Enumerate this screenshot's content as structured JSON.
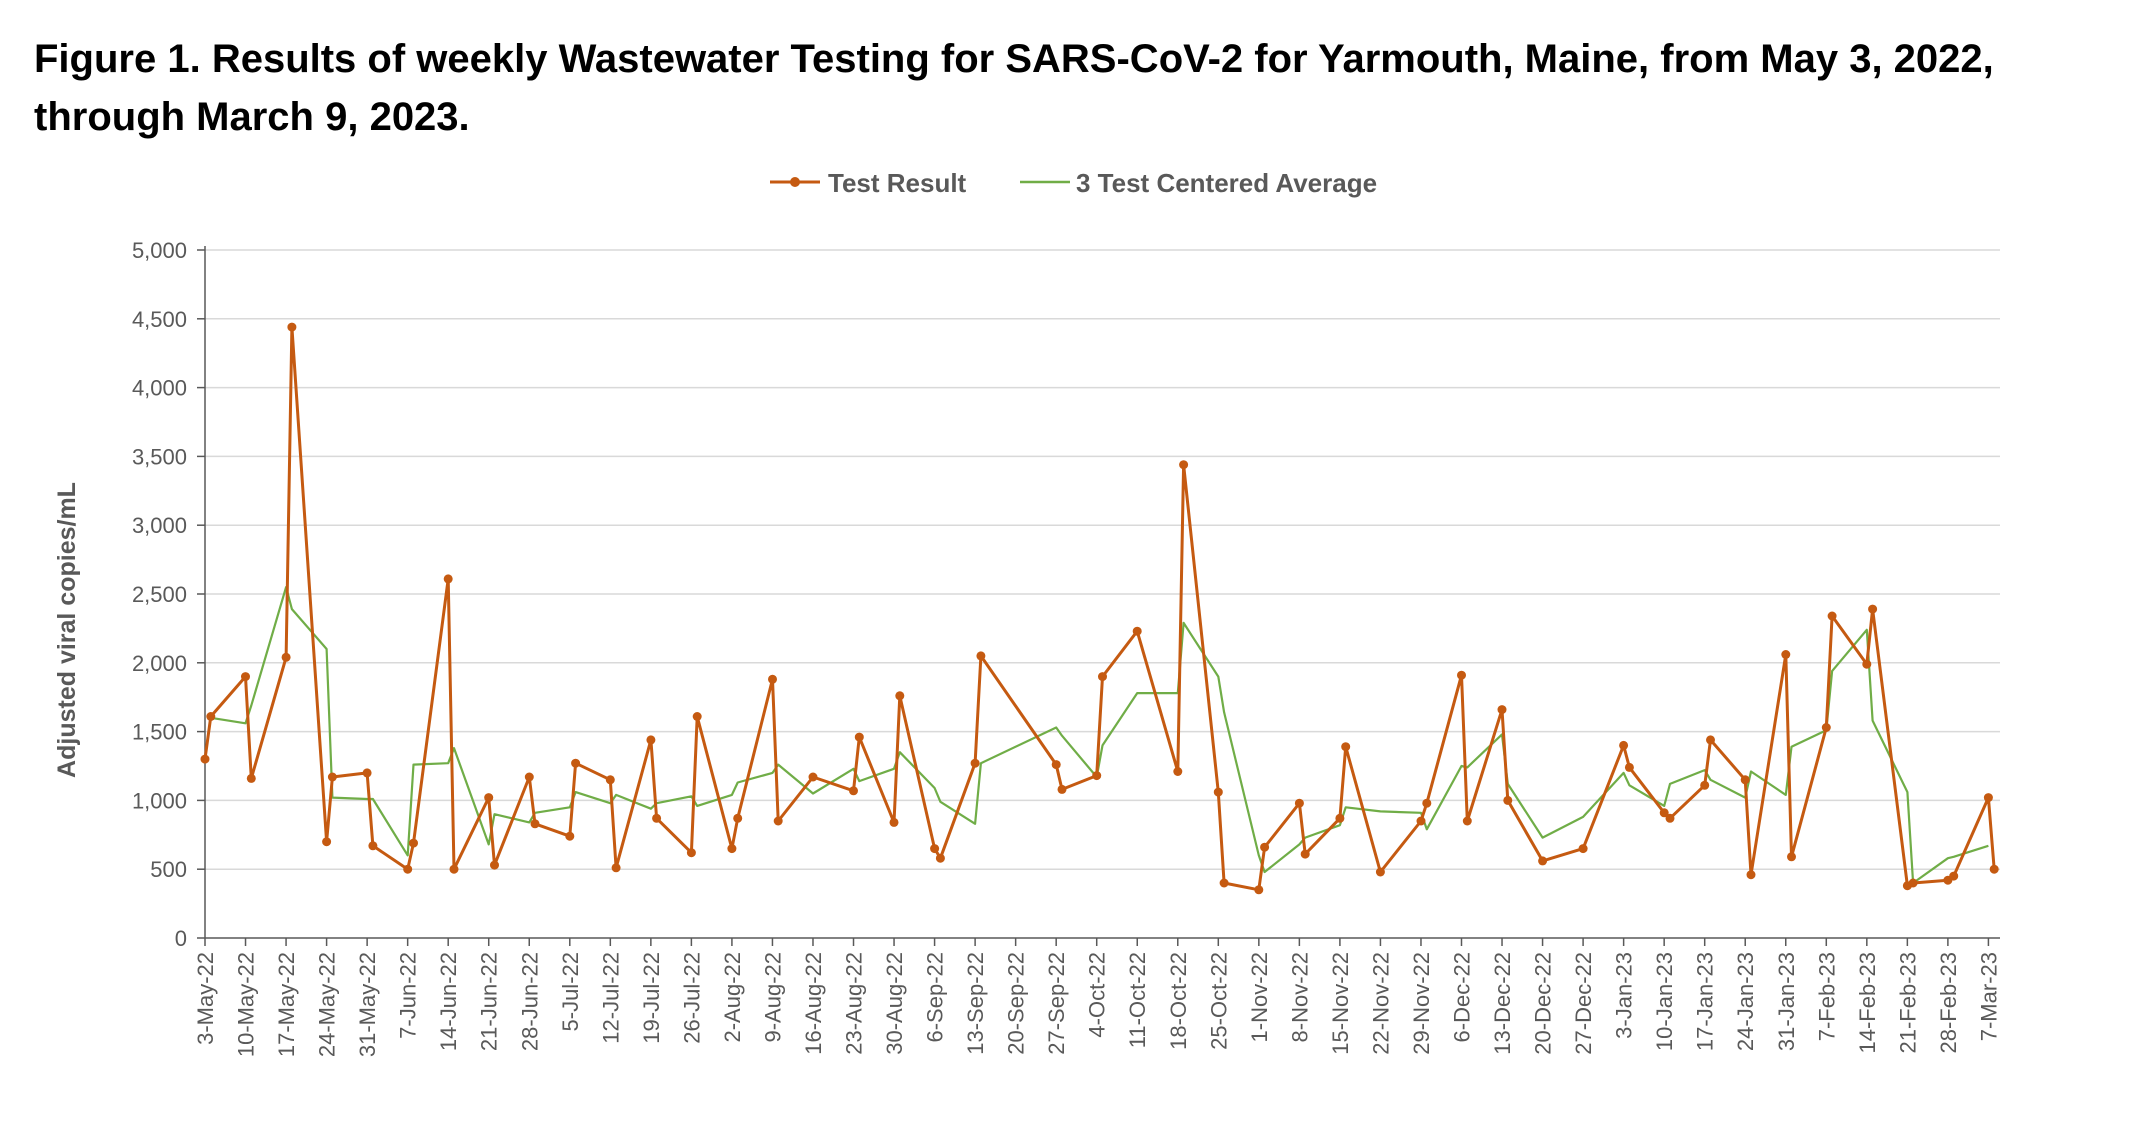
{
  "figure_title": "Figure 1. Results of weekly Wastewater Testing for SARS-CoV-2 for Yarmouth, Maine, from May 3, 2022, through March 9, 2023.",
  "colors": {
    "test_result": "#C55A11",
    "average": "#70AD47",
    "grid": "#D9D9D9",
    "axis": "#595959",
    "text": "#595959"
  },
  "chart_data": {
    "type": "line",
    "title": "",
    "xlabel": "",
    "ylabel": "Adjusted viral copies/mL",
    "ylim": [
      0,
      5000
    ],
    "yticks": [
      0,
      500,
      1000,
      1500,
      2000,
      2500,
      3000,
      3500,
      4000,
      4500,
      5000
    ],
    "ytick_labels": [
      "0",
      "500",
      "1,000",
      "1,500",
      "2,000",
      "2,500",
      "3,000",
      "3,500",
      "4,000",
      "4,500",
      "5,000"
    ],
    "xlim": [
      "2022-05-03",
      "2023-03-09"
    ],
    "xticks": [
      "2022-05-03",
      "2022-05-10",
      "2022-05-17",
      "2022-05-24",
      "2022-05-31",
      "2022-06-07",
      "2022-06-14",
      "2022-06-21",
      "2022-06-28",
      "2022-07-05",
      "2022-07-12",
      "2022-07-19",
      "2022-07-26",
      "2022-08-02",
      "2022-08-09",
      "2022-08-16",
      "2022-08-23",
      "2022-08-30",
      "2022-09-06",
      "2022-09-13",
      "2022-09-20",
      "2022-09-27",
      "2022-10-04",
      "2022-10-11",
      "2022-10-18",
      "2022-10-25",
      "2022-11-01",
      "2022-11-08",
      "2022-11-15",
      "2022-11-22",
      "2022-11-29",
      "2022-12-06",
      "2022-12-13",
      "2022-12-20",
      "2022-12-27",
      "2023-01-03",
      "2023-01-10",
      "2023-01-17",
      "2023-01-24",
      "2023-01-31",
      "2023-02-07",
      "2023-02-14",
      "2023-02-21",
      "2023-02-28",
      "2023-03-07"
    ],
    "xtick_labels": [
      "3-May-22",
      "10-May-22",
      "17-May-22",
      "24-May-22",
      "31-May-22",
      "7-Jun-22",
      "14-Jun-22",
      "21-Jun-22",
      "28-Jun-22",
      "5-Jul-22",
      "12-Jul-22",
      "19-Jul-22",
      "26-Jul-22",
      "2-Aug-22",
      "9-Aug-22",
      "16-Aug-22",
      "23-Aug-22",
      "30-Aug-22",
      "6-Sep-22",
      "13-Sep-22",
      "20-Sep-22",
      "27-Sep-22",
      "4-Oct-22",
      "11-Oct-22",
      "18-Oct-22",
      "25-Oct-22",
      "1-Nov-22",
      "8-Nov-22",
      "15-Nov-22",
      "22-Nov-22",
      "29-Nov-22",
      "6-Dec-22",
      "13-Dec-22",
      "20-Dec-22",
      "27-Dec-22",
      "3-Jan-23",
      "10-Jan-23",
      "17-Jan-23",
      "24-Jan-23",
      "31-Jan-23",
      "7-Feb-23",
      "14-Feb-23",
      "21-Feb-23",
      "28-Feb-23",
      "7-Mar-23"
    ],
    "grid": "horizontal",
    "legend_position": "top-center",
    "series": [
      {
        "name": "Test Result",
        "style": "line-with-markers",
        "x": [
          "2022-05-03",
          "2022-05-04",
          "2022-05-10",
          "2022-05-11",
          "2022-05-17",
          "2022-05-18",
          "2022-05-24",
          "2022-05-25",
          "2022-05-31",
          "2022-06-01",
          "2022-06-07",
          "2022-06-08",
          "2022-06-14",
          "2022-06-15",
          "2022-06-21",
          "2022-06-22",
          "2022-06-28",
          "2022-06-29",
          "2022-07-05",
          "2022-07-06",
          "2022-07-12",
          "2022-07-13",
          "2022-07-19",
          "2022-07-20",
          "2022-07-26",
          "2022-07-27",
          "2022-08-02",
          "2022-08-03",
          "2022-08-09",
          "2022-08-10",
          "2022-08-16",
          "2022-08-23",
          "2022-08-24",
          "2022-08-30",
          "2022-08-31",
          "2022-09-06",
          "2022-09-07",
          "2022-09-13",
          "2022-09-14",
          "2022-09-27",
          "2022-09-28",
          "2022-10-04",
          "2022-10-05",
          "2022-10-11",
          "2022-10-18",
          "2022-10-19",
          "2022-10-25",
          "2022-10-26",
          "2022-11-01",
          "2022-11-02",
          "2022-11-08",
          "2022-11-09",
          "2022-11-15",
          "2022-11-16",
          "2022-11-22",
          "2022-11-29",
          "2022-11-30",
          "2022-12-06",
          "2022-12-07",
          "2022-12-13",
          "2022-12-14",
          "2022-12-20",
          "2022-12-27",
          "2023-01-03",
          "2023-01-04",
          "2023-01-10",
          "2023-01-11",
          "2023-01-17",
          "2023-01-18",
          "2023-01-24",
          "2023-01-25",
          "2023-01-31",
          "2023-02-01",
          "2023-02-07",
          "2023-02-08",
          "2023-02-14",
          "2023-02-15",
          "2023-02-21",
          "2023-02-22",
          "2023-02-28",
          "2023-03-01",
          "2023-03-07",
          "2023-03-08"
        ],
        "values": [
          1300,
          1610,
          1900,
          1160,
          2040,
          4440,
          700,
          1170,
          1200,
          670,
          500,
          690,
          2610,
          500,
          1020,
          530,
          1170,
          830,
          740,
          1270,
          1150,
          510,
          1440,
          870,
          620,
          1610,
          650,
          870,
          1880,
          850,
          1170,
          1070,
          1460,
          840,
          1760,
          650,
          580,
          1270,
          2050,
          1260,
          1080,
          1180,
          1900,
          2230,
          1210,
          3440,
          1060,
          400,
          350,
          660,
          980,
          610,
          870,
          1390,
          480,
          850,
          980,
          1910,
          850,
          1660,
          1000,
          560,
          650,
          1400,
          1240,
          910,
          870,
          1110,
          1440,
          1150,
          460,
          2060,
          590,
          1530,
          2340,
          1990,
          2390,
          380,
          400,
          420,
          450,
          1020,
          500
        ]
      },
      {
        "name": "3 Test Centered Average",
        "style": "line",
        "x": [
          "2022-05-04",
          "2022-05-10",
          "2022-05-11",
          "2022-05-17",
          "2022-05-18",
          "2022-05-24",
          "2022-05-25",
          "2022-05-31",
          "2022-06-01",
          "2022-06-07",
          "2022-06-08",
          "2022-06-14",
          "2022-06-15",
          "2022-06-21",
          "2022-06-22",
          "2022-06-28",
          "2022-06-29",
          "2022-07-05",
          "2022-07-06",
          "2022-07-12",
          "2022-07-13",
          "2022-07-19",
          "2022-07-20",
          "2022-07-26",
          "2022-07-27",
          "2022-08-02",
          "2022-08-03",
          "2022-08-09",
          "2022-08-10",
          "2022-08-16",
          "2022-08-23",
          "2022-08-24",
          "2022-08-30",
          "2022-08-31",
          "2022-09-06",
          "2022-09-07",
          "2022-09-13",
          "2022-09-14",
          "2022-09-27",
          "2022-09-28",
          "2022-10-04",
          "2022-10-05",
          "2022-10-11",
          "2022-10-18",
          "2022-10-19",
          "2022-10-25",
          "2022-10-26",
          "2022-11-01",
          "2022-11-02",
          "2022-11-08",
          "2022-11-09",
          "2022-11-15",
          "2022-11-16",
          "2022-11-22",
          "2022-11-29",
          "2022-11-30",
          "2022-12-06",
          "2022-12-07",
          "2022-12-13",
          "2022-12-14",
          "2022-12-20",
          "2022-12-27",
          "2023-01-03",
          "2023-01-04",
          "2023-01-10",
          "2023-01-11",
          "2023-01-17",
          "2023-01-18",
          "2023-01-24",
          "2023-01-25",
          "2023-01-31",
          "2023-02-01",
          "2023-02-07",
          "2023-02-08",
          "2023-02-14",
          "2023-02-15",
          "2023-02-21",
          "2023-02-22",
          "2023-02-28",
          "2023-03-01",
          "2023-03-07"
        ],
        "values": [
          1600,
          1560,
          1690,
          2550,
          2390,
          2100,
          1020,
          1010,
          1010,
          600,
          1260,
          1270,
          1380,
          680,
          900,
          840,
          910,
          950,
          1060,
          980,
          1040,
          940,
          980,
          1030,
          960,
          1040,
          1130,
          1200,
          1260,
          1050,
          1230,
          1140,
          1230,
          1350,
          1090,
          990,
          830,
          1270,
          1530,
          1470,
          1170,
          1400,
          1780,
          1780,
          2290,
          1900,
          1640,
          600,
          480,
          680,
          730,
          820,
          950,
          920,
          910,
          790,
          1250,
          1240,
          1480,
          1120,
          730,
          880,
          1200,
          1110,
          960,
          1120,
          1220,
          1150,
          1020,
          1210,
          1040,
          1390,
          1510,
          1940,
          2240,
          1580,
          1060,
          400,
          580,
          590,
          670
        ]
      }
    ]
  }
}
